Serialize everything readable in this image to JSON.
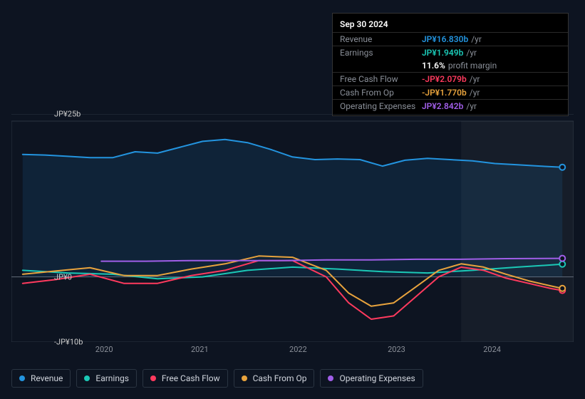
{
  "background": "#0d1421",
  "tooltip": {
    "title": "Sep 30 2024",
    "rows": [
      {
        "label": "Revenue",
        "value": "JP¥16.830b",
        "suffix": "/yr",
        "color": "#2394df"
      },
      {
        "label": "Earnings",
        "value": "JP¥1.949b",
        "suffix": "/yr",
        "color": "#1bc8b6"
      },
      {
        "label": "",
        "value": "11.6%",
        "suffix": "profit margin",
        "color": "#ffffff"
      },
      {
        "label": "Free Cash Flow",
        "value": "-JP¥2.079b",
        "suffix": "/yr",
        "color": "#ff3a5e"
      },
      {
        "label": "Cash From Op",
        "value": "-JP¥1.770b",
        "suffix": "/yr",
        "color": "#e8a33d"
      },
      {
        "label": "Operating Expenses",
        "value": "JP¥2.842b",
        "suffix": "/yr",
        "color": "#a05ee8"
      }
    ]
  },
  "chart": {
    "type": "line-area",
    "grid_color": "#2a3441",
    "zero_line_color": "#5a6270",
    "area_fill": "rgba(35,148,223,0.12)",
    "cursor_band_color": "rgba(255,255,255,0.04)",
    "cursor_band_x": [
      0.8,
      1.0
    ],
    "ymin": -10,
    "ymax": 25,
    "yticks": [
      {
        "v": 25,
        "label": "JP¥25b"
      },
      {
        "v": 0,
        "label": "JP¥0"
      },
      {
        "v": -10,
        "label": "-JP¥10b"
      }
    ],
    "xmin": 0,
    "xmax": 1,
    "xticks": [
      {
        "v": 0.165,
        "label": "2020"
      },
      {
        "v": 0.335,
        "label": "2021"
      },
      {
        "v": 0.51,
        "label": "2022"
      },
      {
        "v": 0.685,
        "label": "2023"
      },
      {
        "v": 0.855,
        "label": "2024"
      }
    ],
    "series": [
      {
        "name": "Revenue",
        "color": "#2394df",
        "width": 2,
        "fill": true,
        "marker_end": true,
        "points": [
          [
            0.02,
            18.8
          ],
          [
            0.06,
            18.7
          ],
          [
            0.1,
            18.5
          ],
          [
            0.14,
            18.3
          ],
          [
            0.18,
            18.3
          ],
          [
            0.22,
            19.2
          ],
          [
            0.26,
            19.0
          ],
          [
            0.3,
            19.9
          ],
          [
            0.34,
            20.8
          ],
          [
            0.38,
            21.1
          ],
          [
            0.42,
            20.6
          ],
          [
            0.46,
            19.6
          ],
          [
            0.5,
            18.4
          ],
          [
            0.54,
            18.0
          ],
          [
            0.58,
            18.1
          ],
          [
            0.62,
            18.0
          ],
          [
            0.66,
            17.0
          ],
          [
            0.7,
            17.9
          ],
          [
            0.74,
            18.2
          ],
          [
            0.78,
            18.0
          ],
          [
            0.82,
            17.8
          ],
          [
            0.86,
            17.4
          ],
          [
            0.9,
            17.2
          ],
          [
            0.94,
            17.0
          ],
          [
            0.98,
            16.83
          ]
        ]
      },
      {
        "name": "Earnings",
        "color": "#1bc8b6",
        "width": 2,
        "fill": false,
        "marker_end": true,
        "points": [
          [
            0.02,
            1.0
          ],
          [
            0.1,
            0.6
          ],
          [
            0.18,
            0.4
          ],
          [
            0.26,
            -0.3
          ],
          [
            0.34,
            0.0
          ],
          [
            0.42,
            1.0
          ],
          [
            0.5,
            1.5
          ],
          [
            0.58,
            1.2
          ],
          [
            0.66,
            0.8
          ],
          [
            0.74,
            0.6
          ],
          [
            0.82,
            1.0
          ],
          [
            0.9,
            1.5
          ],
          [
            0.98,
            1.949
          ]
        ]
      },
      {
        "name": "Free Cash Flow",
        "color": "#ff3a5e",
        "width": 2,
        "fill": false,
        "marker_end": true,
        "points": [
          [
            0.02,
            -1.0
          ],
          [
            0.08,
            -0.4
          ],
          [
            0.14,
            0.4
          ],
          [
            0.2,
            -1.0
          ],
          [
            0.26,
            -1.0
          ],
          [
            0.32,
            0.2
          ],
          [
            0.38,
            1.0
          ],
          [
            0.44,
            2.5
          ],
          [
            0.5,
            2.5
          ],
          [
            0.56,
            0.0
          ],
          [
            0.6,
            -4.0
          ],
          [
            0.64,
            -6.5
          ],
          [
            0.68,
            -6.0
          ],
          [
            0.72,
            -3.0
          ],
          [
            0.76,
            0.0
          ],
          [
            0.8,
            1.5
          ],
          [
            0.84,
            1.0
          ],
          [
            0.88,
            -0.2
          ],
          [
            0.92,
            -1.0
          ],
          [
            0.96,
            -1.8
          ],
          [
            0.98,
            -2.079
          ]
        ]
      },
      {
        "name": "Cash From Op",
        "color": "#e8a33d",
        "width": 2,
        "fill": false,
        "marker_end": true,
        "points": [
          [
            0.02,
            0.4
          ],
          [
            0.08,
            0.9
          ],
          [
            0.14,
            1.4
          ],
          [
            0.2,
            0.2
          ],
          [
            0.26,
            0.2
          ],
          [
            0.32,
            1.2
          ],
          [
            0.38,
            2.0
          ],
          [
            0.44,
            3.2
          ],
          [
            0.5,
            3.0
          ],
          [
            0.56,
            1.0
          ],
          [
            0.6,
            -2.5
          ],
          [
            0.64,
            -4.5
          ],
          [
            0.68,
            -4.0
          ],
          [
            0.72,
            -1.5
          ],
          [
            0.76,
            1.0
          ],
          [
            0.8,
            2.0
          ],
          [
            0.84,
            1.5
          ],
          [
            0.88,
            0.4
          ],
          [
            0.92,
            -0.6
          ],
          [
            0.96,
            -1.4
          ],
          [
            0.98,
            -1.77
          ]
        ]
      },
      {
        "name": "Operating Expenses",
        "color": "#a05ee8",
        "width": 2,
        "fill": false,
        "marker_end": true,
        "points": [
          [
            0.16,
            2.4
          ],
          [
            0.24,
            2.4
          ],
          [
            0.32,
            2.5
          ],
          [
            0.4,
            2.5
          ],
          [
            0.48,
            2.5
          ],
          [
            0.56,
            2.6
          ],
          [
            0.64,
            2.6
          ],
          [
            0.72,
            2.7
          ],
          [
            0.8,
            2.7
          ],
          [
            0.88,
            2.8
          ],
          [
            0.98,
            2.842
          ]
        ]
      }
    ]
  },
  "legend": [
    {
      "label": "Revenue",
      "color": "#2394df"
    },
    {
      "label": "Earnings",
      "color": "#1bc8b6"
    },
    {
      "label": "Free Cash Flow",
      "color": "#ff3a5e"
    },
    {
      "label": "Cash From Op",
      "color": "#e8a33d"
    },
    {
      "label": "Operating Expenses",
      "color": "#a05ee8"
    }
  ]
}
